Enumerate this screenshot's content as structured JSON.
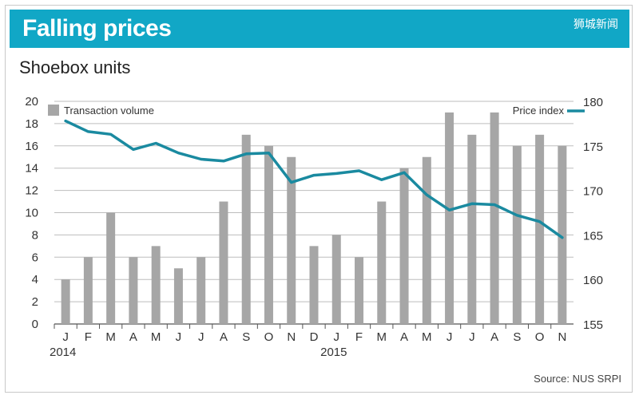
{
  "header": {
    "title": "Falling prices",
    "watermark": "狮城新闻"
  },
  "subtitle": "Shoebox units",
  "source": "Source: NUS SRPI",
  "colors": {
    "banner": "#11a7c6",
    "bars": "#a6a6a6",
    "line": "#1a8aa0"
  },
  "chart_data": {
    "type": "bar",
    "categories": [
      "J",
      "F",
      "M",
      "A",
      "M",
      "J",
      "J",
      "A",
      "S",
      "O",
      "N",
      "D",
      "J",
      "F",
      "M",
      "A",
      "M",
      "J",
      "J",
      "A",
      "S",
      "O",
      "N"
    ],
    "year_labels": [
      {
        "label": "2014",
        "index": 0
      },
      {
        "label": "2015",
        "index": 12
      }
    ],
    "series": [
      {
        "name": "Transaction volume",
        "type": "bar",
        "axis": "left",
        "values": [
          4,
          6,
          10,
          6,
          7,
          5,
          6,
          11,
          17,
          16,
          15,
          7,
          8,
          6,
          11,
          14,
          15,
          19,
          17,
          19,
          16,
          17,
          16
        ]
      },
      {
        "name": "Price index",
        "type": "line",
        "axis": "right",
        "values": [
          177.8,
          176.6,
          176.3,
          174.6,
          175.3,
          174.2,
          173.5,
          173.3,
          174.1,
          174.2,
          170.9,
          171.7,
          171.9,
          172.2,
          171.2,
          172.0,
          169.5,
          167.8,
          168.5,
          168.4,
          167.2,
          166.5,
          164.7
        ]
      }
    ],
    "left_axis": {
      "ylim": [
        0,
        20
      ],
      "ticks": [
        "0",
        "2",
        "4",
        "6",
        "8",
        "10",
        "12",
        "14",
        "16",
        "18",
        "20"
      ]
    },
    "right_axis": {
      "ylim": [
        155,
        180
      ],
      "ticks": [
        "155",
        "160",
        "165",
        "170",
        "175",
        "180"
      ]
    },
    "grid": true,
    "legend": [
      "top-left",
      "top-right"
    ]
  }
}
